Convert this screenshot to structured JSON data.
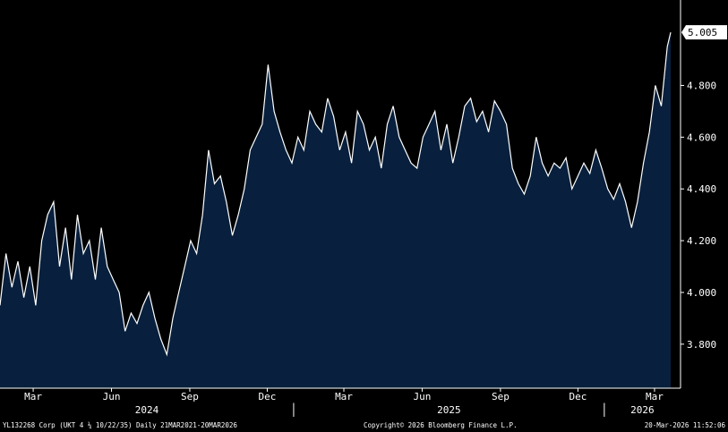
{
  "chart_data": {
    "type": "area",
    "title": "",
    "xlabel": "",
    "ylabel": "",
    "ylim": [
      3.63,
      5.13
    ],
    "grid": false,
    "legend": "none",
    "colors": {
      "fill": "#08203d",
      "line": "#ffffff",
      "background": "#000000",
      "last_label_bg": "#ffffff"
    },
    "y_ticks": [
      "3.800",
      "4.000",
      "4.200",
      "4.400",
      "4.600",
      "4.800"
    ],
    "x_ticks": [
      {
        "label": "Mar",
        "date": "2024-03-01"
      },
      {
        "label": "Jun",
        "date": "2024-06-01"
      },
      {
        "label": "Sep",
        "date": "2024-09-01"
      },
      {
        "label": "Dec",
        "date": "2024-12-01"
      },
      {
        "label": "Mar",
        "date": "2025-03-01"
      },
      {
        "label": "Jun",
        "date": "2025-06-01"
      },
      {
        "label": "Sep",
        "date": "2025-09-01"
      },
      {
        "label": "Dec",
        "date": "2025-12-01"
      },
      {
        "label": "Mar",
        "date": "2026-03-01"
      }
    ],
    "years": [
      "2024",
      "2025",
      "2026"
    ],
    "last_value": "5.005",
    "series": [
      {
        "x": [
          "2024-01-22",
          "2024-01-29",
          "2024-02-05",
          "2024-02-12",
          "2024-02-19",
          "2024-02-26",
          "2024-03-04",
          "2024-03-11",
          "2024-03-18",
          "2024-03-25",
          "2024-04-01",
          "2024-04-08",
          "2024-04-15",
          "2024-04-22",
          "2024-04-29",
          "2024-05-06",
          "2024-05-13",
          "2024-05-20",
          "2024-05-27",
          "2024-06-03",
          "2024-06-10",
          "2024-06-17",
          "2024-06-24",
          "2024-07-01",
          "2024-07-08",
          "2024-07-15",
          "2024-07-22",
          "2024-07-29",
          "2024-08-05",
          "2024-08-12",
          "2024-08-19",
          "2024-08-26",
          "2024-09-02",
          "2024-09-09",
          "2024-09-16",
          "2024-09-23",
          "2024-09-30",
          "2024-10-07",
          "2024-10-14",
          "2024-10-21",
          "2024-10-28",
          "2024-11-04",
          "2024-11-11",
          "2024-11-18",
          "2024-11-25",
          "2024-12-02",
          "2024-12-09",
          "2024-12-16",
          "2024-12-23",
          "2024-12-30",
          "2025-01-06",
          "2025-01-13",
          "2025-01-20",
          "2025-01-27",
          "2025-02-03",
          "2025-02-10",
          "2025-02-17",
          "2025-02-24",
          "2025-03-03",
          "2025-03-10",
          "2025-03-17",
          "2025-03-24",
          "2025-03-31",
          "2025-04-07",
          "2025-04-14",
          "2025-04-21",
          "2025-04-28",
          "2025-05-05",
          "2025-05-12",
          "2025-05-19",
          "2025-05-26",
          "2025-06-02",
          "2025-06-09",
          "2025-06-16",
          "2025-06-23",
          "2025-06-30",
          "2025-07-07",
          "2025-07-14",
          "2025-07-21",
          "2025-07-28",
          "2025-08-04",
          "2025-08-11",
          "2025-08-18",
          "2025-08-25",
          "2025-09-01",
          "2025-09-08",
          "2025-09-15",
          "2025-09-22",
          "2025-09-29",
          "2025-10-06",
          "2025-10-13",
          "2025-10-20",
          "2025-10-27",
          "2025-11-03",
          "2025-11-10",
          "2025-11-17",
          "2025-11-24",
          "2025-12-01",
          "2025-12-08",
          "2025-12-15",
          "2025-12-22",
          "2025-12-29",
          "2026-01-05",
          "2026-01-12",
          "2026-01-19",
          "2026-01-26",
          "2026-02-02",
          "2026-02-09",
          "2026-02-16",
          "2026-02-23",
          "2026-03-02",
          "2026-03-09",
          "2026-03-16",
          "2026-03-20"
        ],
        "values": [
          3.95,
          4.15,
          4.02,
          4.12,
          3.98,
          4.1,
          3.95,
          4.2,
          4.3,
          4.35,
          4.1,
          4.25,
          4.05,
          4.3,
          4.15,
          4.2,
          4.05,
          4.25,
          4.1,
          4.05,
          4.0,
          3.85,
          3.92,
          3.88,
          3.95,
          4.0,
          3.9,
          3.82,
          3.76,
          3.9,
          4.0,
          4.1,
          4.2,
          4.15,
          4.3,
          4.55,
          4.42,
          4.45,
          4.35,
          4.22,
          4.3,
          4.4,
          4.55,
          4.6,
          4.65,
          4.88,
          4.7,
          4.62,
          4.55,
          4.5,
          4.6,
          4.55,
          4.7,
          4.65,
          4.62,
          4.75,
          4.68,
          4.55,
          4.62,
          4.5,
          4.7,
          4.65,
          4.55,
          4.6,
          4.48,
          4.65,
          4.72,
          4.6,
          4.55,
          4.5,
          4.48,
          4.6,
          4.65,
          4.7,
          4.55,
          4.65,
          4.5,
          4.6,
          4.72,
          4.75,
          4.66,
          4.7,
          4.62,
          4.74,
          4.7,
          4.65,
          4.48,
          4.42,
          4.38,
          4.45,
          4.6,
          4.5,
          4.45,
          4.5,
          4.48,
          4.52,
          4.4,
          4.45,
          4.5,
          4.46,
          4.55,
          4.48,
          4.4,
          4.36,
          4.42,
          4.35,
          4.25,
          4.35,
          4.5,
          4.62,
          4.8,
          4.72,
          4.95,
          5.005
        ]
      }
    ]
  },
  "footer": {
    "left": "YL132268 Corp (UKT 4 ¼ 10/22/35) Daily 21MAR2021-20MAR2026",
    "center": "Copyright© 2026 Bloomberg Finance L.P.",
    "right": "20-Mar-2026 11:52:06"
  }
}
